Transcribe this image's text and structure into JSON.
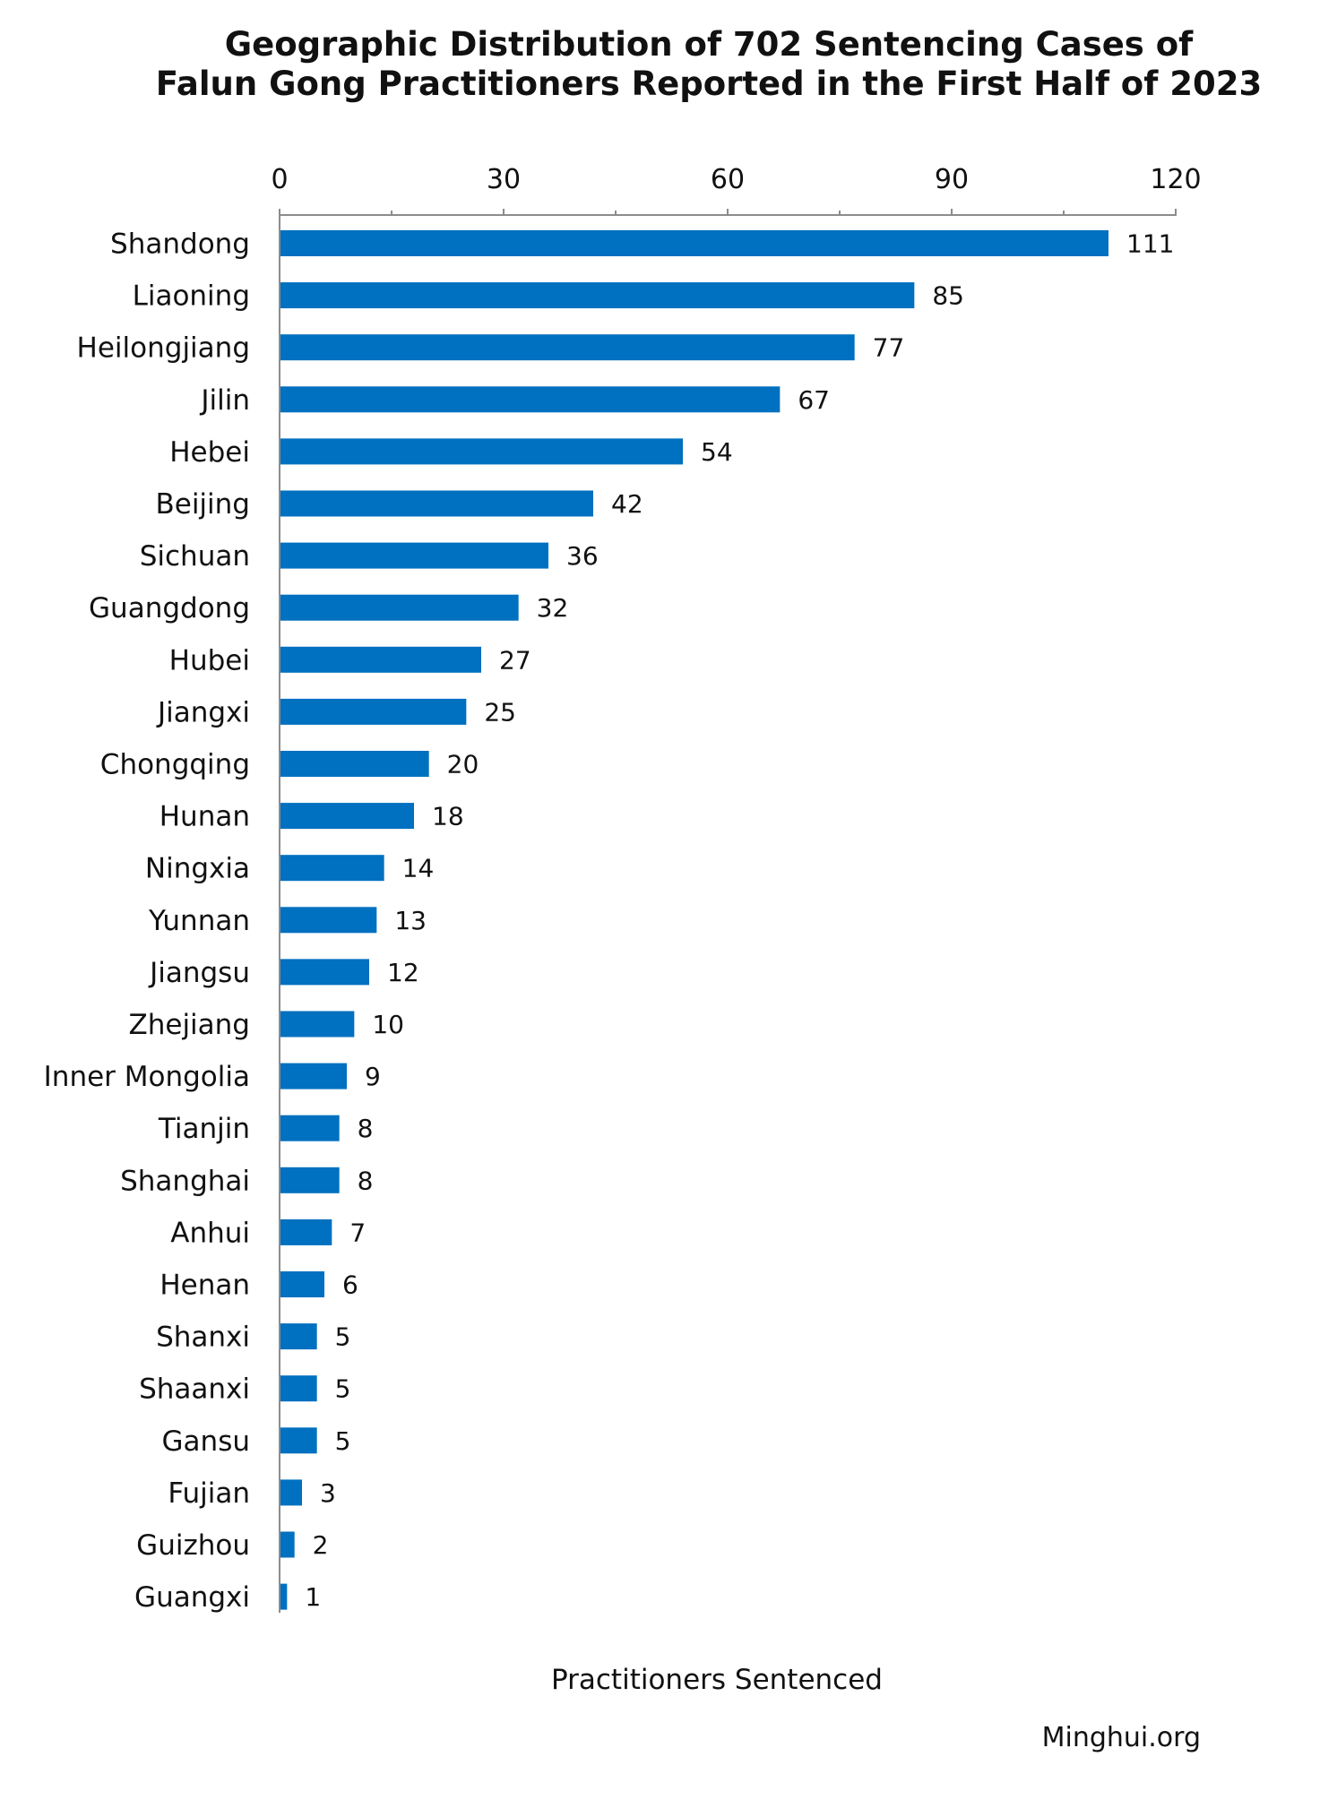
{
  "chart_data": {
    "type": "bar",
    "orientation": "horizontal",
    "title": "Geographic Distribution of 702 Sentencing Cases of",
    "subtitle": "Falun Gong Practitioners Reported in the First Half of 2023",
    "xlabel": "Practitioners Sentenced",
    "ylabel": "",
    "xlim": [
      0,
      120
    ],
    "x_ticks": [
      0,
      30,
      60,
      90,
      120
    ],
    "x_axis_position": "top",
    "grid": false,
    "legend": "none",
    "bar_color": "#0070C0",
    "categories": [
      "Shandong",
      "Liaoning",
      "Heilongjiang",
      "Jilin",
      "Hebei",
      "Beijing",
      "Sichuan",
      "Guangdong",
      "Hubei",
      "Jiangxi",
      "Chongqing",
      "Hunan",
      "Ningxia",
      "Yunnan",
      "Jiangsu",
      "Zhejiang",
      "Inner Mongolia",
      "Tianjin",
      "Shanghai",
      "Anhui",
      "Henan",
      "Shanxi",
      "Shaanxi",
      "Gansu",
      "Fujian",
      "Guizhou",
      "Guangxi"
    ],
    "values": [
      111,
      85,
      77,
      67,
      54,
      42,
      36,
      32,
      27,
      25,
      20,
      18,
      14,
      13,
      12,
      10,
      9,
      8,
      8,
      7,
      6,
      5,
      5,
      5,
      3,
      2,
      1
    ],
    "data_labels": true
  },
  "credit": "Minghui.org"
}
